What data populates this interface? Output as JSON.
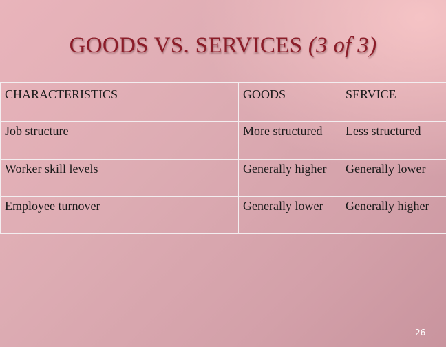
{
  "slide": {
    "title_main": "GOODS VS. SERVICES",
    "title_sub": "(3 of 3)",
    "page_number": "26"
  },
  "table": {
    "headers": [
      "CHARACTERISTICS",
      "GOODS",
      "SERVICE"
    ],
    "rows": [
      [
        "Job structure",
        "More structured",
        "Less structured"
      ],
      [
        "Worker skill levels",
        "Generally higher",
        "Generally lower"
      ],
      [
        "Employee turnover",
        "Generally lower",
        "Generally higher"
      ]
    ]
  },
  "colors": {
    "title": "#8b1c28",
    "background": "#ddacb3",
    "grid_lines": "#f3eef0",
    "text": "#1a1a1a"
  }
}
